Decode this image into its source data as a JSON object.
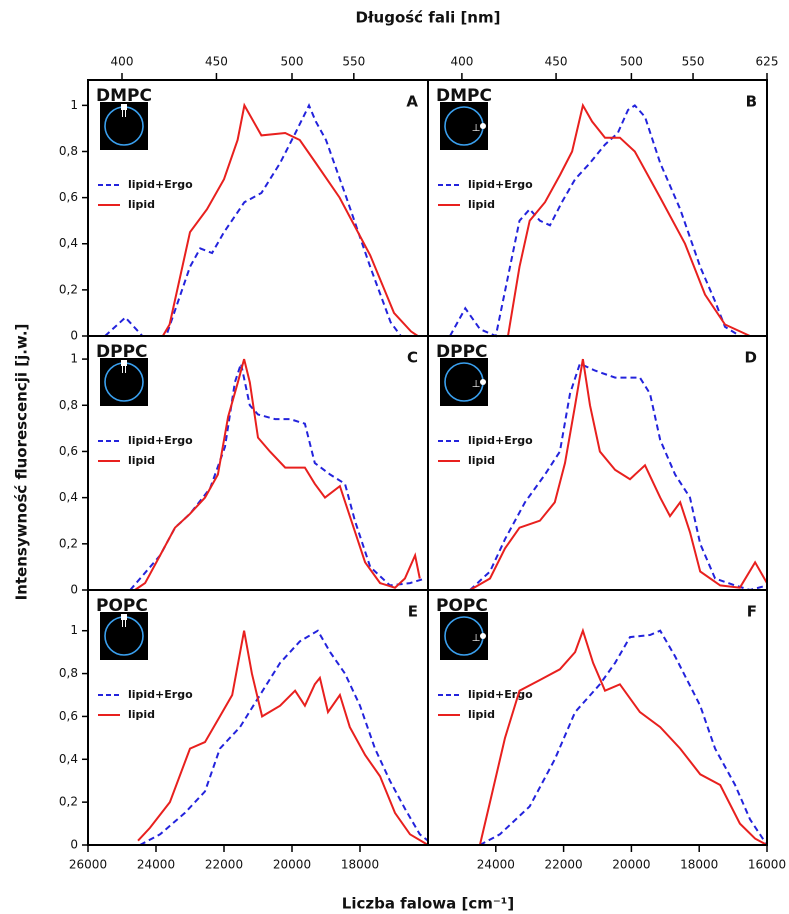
{
  "top_axis_label": "Długość fali [nm]",
  "x_label": "Liczba falowa [cm⁻¹]",
  "y_label": "Intensywność fluorescencji [j.w.]",
  "chart_data": [
    {
      "type": "line",
      "title": "DMPC",
      "panel_label": "A",
      "inset_label": "II",
      "xlim": [
        26000,
        16000
      ],
      "ylim": [
        0,
        1.11
      ],
      "yticks": [
        0,
        {
          "value": 0.2,
          "label": "0,2"
        },
        {
          "value": 0.4,
          "label": "0,4"
        },
        {
          "value": 0.6,
          "label": "0,6"
        },
        {
          "value": 0.8,
          "label": "0,8"
        },
        1
      ],
      "top_xticks": [
        400,
        450,
        500,
        550
      ],
      "series": [
        {
          "name": "lipid+Ergo",
          "color": "#2323dc",
          "linestyle": "dashed",
          "x": [
            25500,
            24900,
            24400,
            23700,
            23000,
            22700,
            22350,
            22000,
            21400,
            20900,
            20350,
            19900,
            19500,
            19300,
            19000,
            18400,
            17700,
            17100,
            16800
          ],
          "values": [
            0,
            0.08,
            0,
            0,
            0.3,
            0.38,
            0.36,
            0.45,
            0.58,
            0.62,
            0.75,
            0.88,
            1.0,
            0.93,
            0.85,
            0.6,
            0.3,
            0.06,
            0
          ]
        },
        {
          "name": "lipid",
          "color": "#e8201e",
          "linestyle": "solid",
          "x": [
            24500,
            23800,
            23600,
            23000,
            22500,
            22000,
            21600,
            21400,
            20900,
            20200,
            19770,
            19300,
            18600,
            17700,
            17000,
            16500,
            16300
          ],
          "values": [
            0,
            0,
            0.05,
            0.45,
            0.55,
            0.68,
            0.85,
            1.0,
            0.87,
            0.88,
            0.85,
            0.75,
            0.6,
            0.35,
            0.1,
            0.02,
            0
          ]
        }
      ]
    },
    {
      "type": "line",
      "title": "DMPC",
      "panel_label": "B",
      "inset_label": "⊥",
      "xlim": [
        26000,
        16000
      ],
      "ylim": [
        0,
        1.11
      ],
      "top_xticks": [
        400,
        450,
        500,
        550,
        625
      ],
      "series": [
        {
          "name": "lipid+Ergo",
          "color": "#2323dc",
          "linestyle": "dashed",
          "x": [
            25350,
            24900,
            24470,
            24000,
            23580,
            23300,
            23000,
            22700,
            22400,
            22050,
            21660,
            21220,
            20780,
            20400,
            20100,
            19900,
            19600,
            19150,
            18560,
            17970,
            17530,
            17240,
            16800
          ],
          "values": [
            0,
            0.12,
            0.03,
            0,
            0.3,
            0.5,
            0.55,
            0.5,
            0.48,
            0.58,
            0.68,
            0.75,
            0.83,
            0.88,
            0.98,
            1.0,
            0.95,
            0.75,
            0.55,
            0.3,
            0.15,
            0.04,
            0
          ]
        },
        {
          "name": "lipid",
          "color": "#e8201e",
          "linestyle": "solid",
          "x": [
            23640,
            23300,
            23000,
            22550,
            22100,
            21750,
            21430,
            21160,
            20780,
            20340,
            19900,
            19150,
            18420,
            17830,
            17240,
            16500
          ],
          "values": [
            0,
            0.3,
            0.5,
            0.58,
            0.7,
            0.8,
            1.0,
            0.93,
            0.86,
            0.86,
            0.8,
            0.6,
            0.4,
            0.18,
            0.05,
            0
          ]
        }
      ]
    },
    {
      "type": "line",
      "title": "DPPC",
      "panel_label": "C",
      "inset_label": "II",
      "xlim": [
        26000,
        16000
      ],
      "ylim": [
        0,
        1.1
      ],
      "yticks": [
        0,
        {
          "value": 0.2,
          "label": "0,2"
        },
        {
          "value": 0.4,
          "label": "0,4"
        },
        {
          "value": 0.6,
          "label": "0,6"
        },
        {
          "value": 0.8,
          "label": "0,8"
        },
        1
      ],
      "series": [
        {
          "name": "lipid+Ergo",
          "color": "#2323dc",
          "linestyle": "dashed",
          "x": [
            24760,
            23880,
            23440,
            23000,
            22410,
            21970,
            21680,
            21500,
            21240,
            21000,
            20500,
            20060,
            19620,
            19330,
            18880,
            18440,
            18150,
            17700,
            17120,
            16530,
            16090
          ],
          "values": [
            0,
            0.15,
            0.27,
            0.33,
            0.44,
            0.62,
            0.9,
            0.98,
            0.8,
            0.76,
            0.74,
            0.74,
            0.72,
            0.55,
            0.5,
            0.46,
            0.3,
            0.1,
            0.02,
            0.03,
            0.05
          ]
        },
        {
          "name": "lipid",
          "color": "#e8201e",
          "linestyle": "solid",
          "x": [
            24620,
            24320,
            23880,
            23440,
            23000,
            22560,
            22180,
            21880,
            21590,
            21410,
            21240,
            21000,
            20650,
            20200,
            19620,
            19330,
            19030,
            18590,
            18300,
            17850,
            17410,
            16970,
            16680,
            16380,
            16240
          ],
          "values": [
            0,
            0.03,
            0.15,
            0.27,
            0.33,
            0.4,
            0.5,
            0.75,
            0.9,
            1.0,
            0.9,
            0.66,
            0.6,
            0.53,
            0.53,
            0.46,
            0.4,
            0.45,
            0.32,
            0.12,
            0.03,
            0.01,
            0.05,
            0.15,
            0.05
          ]
        }
      ]
    },
    {
      "type": "line",
      "title": "DPPC",
      "panel_label": "D",
      "inset_label": "⊥",
      "xlim": [
        26000,
        16000
      ],
      "ylim": [
        0,
        1.1
      ],
      "series": [
        {
          "name": "lipid+Ergo",
          "color": "#2323dc",
          "linestyle": "dashed",
          "x": [
            24760,
            24170,
            23730,
            23140,
            22550,
            22110,
            21810,
            21520,
            21070,
            20480,
            19750,
            19450,
            19150,
            18710,
            18270,
            17970,
            17530,
            16940,
            16500,
            16000
          ],
          "values": [
            0,
            0.08,
            0.22,
            0.38,
            0.5,
            0.6,
            0.85,
            0.98,
            0.95,
            0.92,
            0.92,
            0.85,
            0.65,
            0.5,
            0.4,
            0.2,
            0.05,
            0.02,
            0,
            0.02
          ]
        },
        {
          "name": "lipid",
          "color": "#e8201e",
          "linestyle": "solid",
          "x": [
            24760,
            24170,
            23730,
            23300,
            22700,
            22260,
            21960,
            21660,
            21430,
            21220,
            20930,
            20480,
            20040,
            19600,
            19150,
            18860,
            18560,
            18270,
            17970,
            17380,
            16800,
            16350,
            16000
          ],
          "values": [
            0,
            0.05,
            0.18,
            0.27,
            0.3,
            0.38,
            0.55,
            0.8,
            1.0,
            0.8,
            0.6,
            0.52,
            0.48,
            0.54,
            0.4,
            0.32,
            0.38,
            0.25,
            0.08,
            0.02,
            0.01,
            0.12,
            0.03
          ]
        }
      ]
    },
    {
      "type": "line",
      "title": "POPC",
      "panel_label": "E",
      "inset_label": "II",
      "xlim": [
        26000,
        16000
      ],
      "ylim": [
        0,
        1.19
      ],
      "yticks": [
        0,
        {
          "value": 0.2,
          "label": "0,2"
        },
        {
          "value": 0.4,
          "label": "0,4"
        },
        {
          "value": 0.6,
          "label": "0,6"
        },
        {
          "value": 0.8,
          "label": "0,8"
        },
        1
      ],
      "xticks": [
        26000,
        24000,
        22000,
        20000,
        18000
      ],
      "series": [
        {
          "name": "lipid+Ergo",
          "color": "#2323dc",
          "linestyle": "dashed",
          "x": [
            24470,
            23880,
            23150,
            22560,
            22120,
            21530,
            20940,
            20350,
            19770,
            19240,
            18880,
            18440,
            18000,
            17560,
            17120,
            16680,
            16240,
            16000
          ],
          "values": [
            0,
            0.05,
            0.15,
            0.25,
            0.45,
            0.55,
            0.7,
            0.85,
            0.95,
            1.0,
            0.9,
            0.8,
            0.65,
            0.45,
            0.3,
            0.17,
            0.05,
            0.02
          ]
        },
        {
          "name": "lipid",
          "color": "#e8201e",
          "linestyle": "solid",
          "x": [
            24530,
            24180,
            23590,
            23000,
            22560,
            22120,
            21760,
            21410,
            21180,
            20880,
            20350,
            19910,
            19620,
            19330,
            19180,
            18940,
            18590,
            18300,
            17850,
            17410,
            16970,
            16530,
            16000
          ],
          "values": [
            0.02,
            0.08,
            0.2,
            0.45,
            0.48,
            0.6,
            0.7,
            1.0,
            0.8,
            0.6,
            0.65,
            0.72,
            0.65,
            0.75,
            0.78,
            0.62,
            0.7,
            0.55,
            0.42,
            0.32,
            0.15,
            0.05,
            0
          ]
        }
      ]
    },
    {
      "type": "line",
      "title": "POPC",
      "panel_label": "F",
      "inset_label": "⊥",
      "xlim": [
        26000,
        16000
      ],
      "ylim": [
        0,
        1.19
      ],
      "xticks": [
        24000,
        22000,
        20000,
        18000,
        16000
      ],
      "series": [
        {
          "name": "lipid+Ergo",
          "color": "#2323dc",
          "linestyle": "dashed",
          "x": [
            24470,
            23880,
            23000,
            22260,
            21660,
            20930,
            20480,
            20040,
            19450,
            19150,
            18710,
            17970,
            17530,
            16940,
            16500,
            16000
          ],
          "values": [
            0,
            0.05,
            0.18,
            0.4,
            0.62,
            0.75,
            0.85,
            0.97,
            0.98,
            1.0,
            0.88,
            0.65,
            0.45,
            0.28,
            0.12,
            0
          ]
        },
        {
          "name": "lipid",
          "color": "#e8201e",
          "linestyle": "solid",
          "x": [
            24470,
            24170,
            23730,
            23300,
            22700,
            22110,
            21660,
            21430,
            21130,
            20780,
            20340,
            19750,
            19150,
            18560,
            17970,
            17380,
            16800,
            16350,
            16000
          ],
          "values": [
            0,
            0.2,
            0.5,
            0.72,
            0.77,
            0.82,
            0.9,
            1.0,
            0.85,
            0.72,
            0.75,
            0.62,
            0.55,
            0.45,
            0.33,
            0.28,
            0.1,
            0.03,
            0
          ]
        }
      ]
    }
  ]
}
